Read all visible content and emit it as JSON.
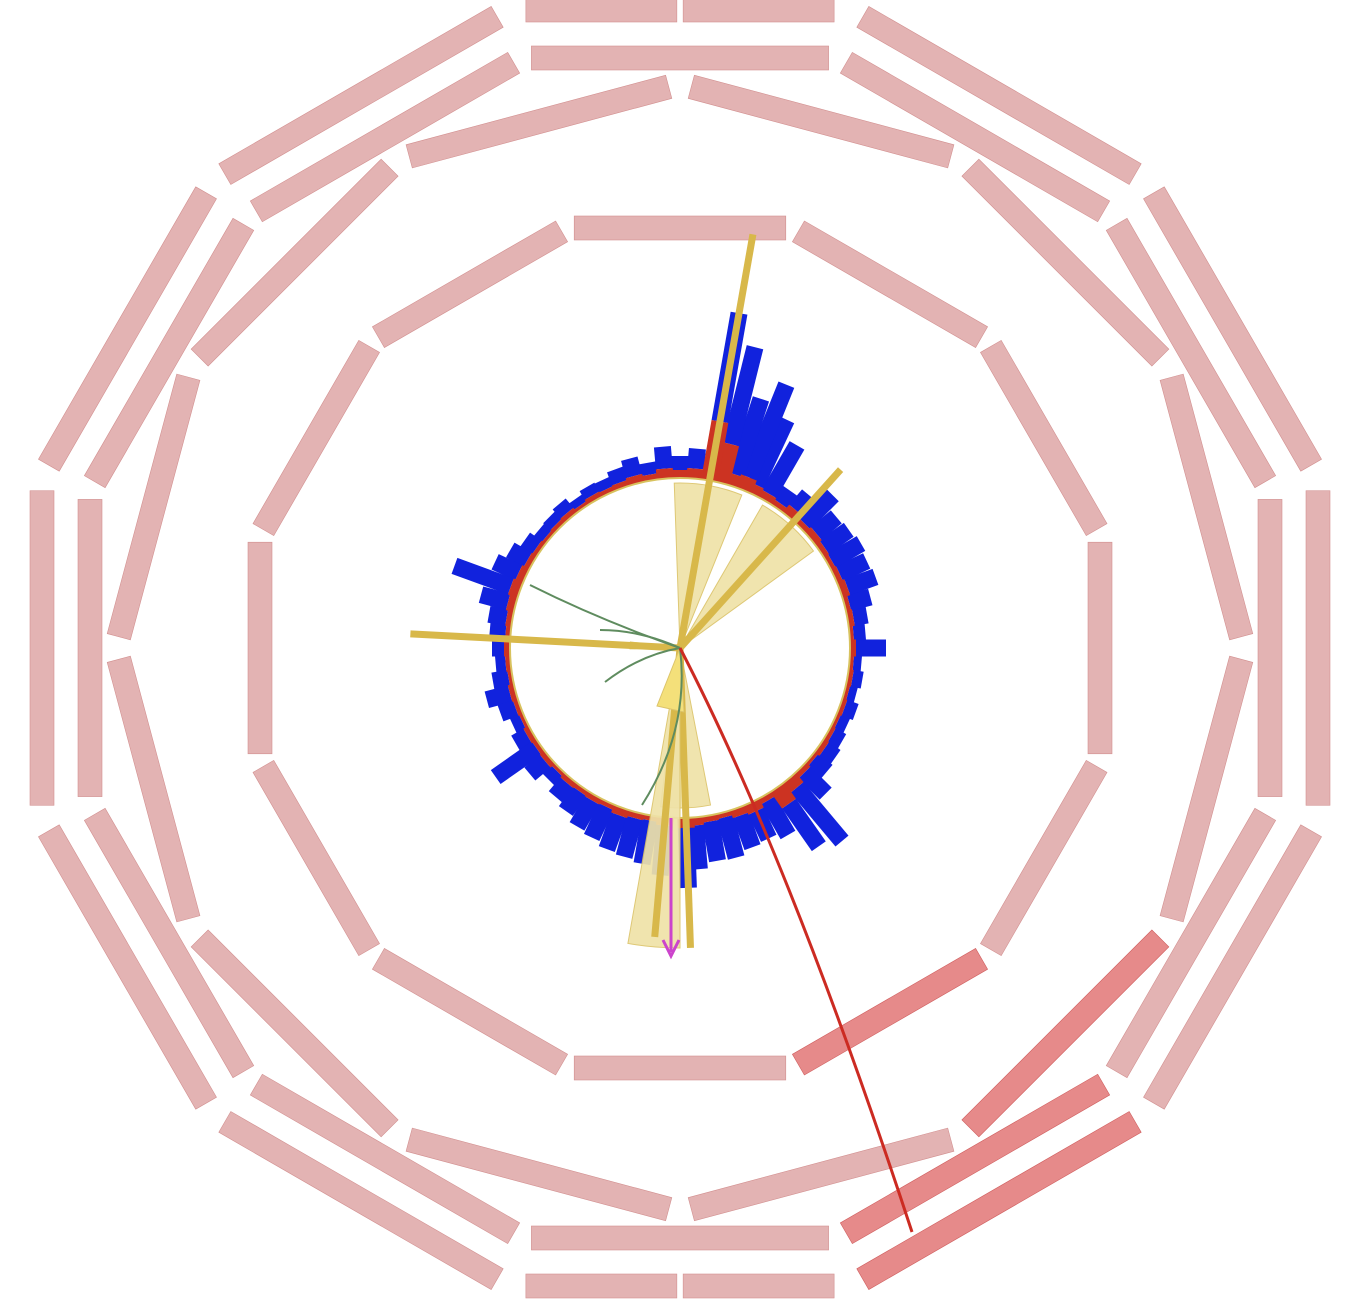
{
  "colors": {
    "background": "#ffffff",
    "muon_chamber": "#e3b3b3",
    "muon_chamber_stroke": "#d29090",
    "muon_chamber_hit": "#e68a8a",
    "muon_chamber_hit_stroke": "#cf5e5e",
    "ecal": "#cc3322",
    "hcal": "#1122dd",
    "jet_cone": "#efe2a8",
    "jet_cone_stroke": "#dcc46a",
    "jet_axis": "#d8b84a",
    "tracker_circle": "#d8c25e",
    "track": "#5f8c5f",
    "muon_track": "#cc2b22",
    "met_arrow": "#cc44cc"
  },
  "event": {
    "muon_chamber_rings": 4,
    "muon_chamber_sectors": 12,
    "muon_chamber_hits": 4,
    "jet_count": 5,
    "charged_tracks": 4,
    "muon_tracks": 1,
    "missing_et_arrows": 1
  }
}
